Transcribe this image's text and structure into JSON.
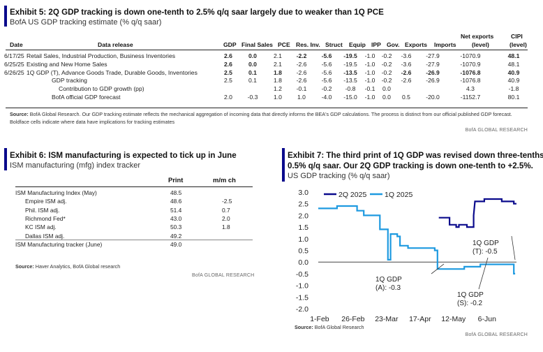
{
  "exhibit5": {
    "title": "Exhibit 5: 2Q GDP tracking is down one-tenth to 2.5% q/q saar largely due to weaker than 1Q PCE",
    "subtitle": "BofA US GDP tracking estimate (% q/q saar)",
    "headers": {
      "date": "Date",
      "release": "Data release",
      "gdp": "GDP",
      "final_sales": "Final Sales",
      "pce": "PCE",
      "res_inv": "Res. Inv.",
      "struct": "Struct",
      "equip": "Equip",
      "ipp": "IPP",
      "gov": "Gov.",
      "exports": "Exports",
      "imports": "Imports",
      "net_exports": "Net exports",
      "net_exports_unit": "(level)",
      "cipi": "CIPI",
      "cipi_unit": "(level)"
    },
    "rows": [
      {
        "date": "6/17/25",
        "release": "Retail Sales, Industrial Production, Business Inventories",
        "gdp": "2.6",
        "final_sales": "0.0",
        "pce": "2.1",
        "res_inv": "-2.2",
        "struct": "-5.6",
        "equip": "-19.5",
        "ipp": "-1.0",
        "gov": "-0.2",
        "exports": "-3.6",
        "imports": "-27.9",
        "net_exports": "-1070.9",
        "cipi": "48.1"
      },
      {
        "date": "6/25/25",
        "release": "Existing and New Home Sales",
        "gdp": "2.6",
        "final_sales": "0.0",
        "pce": "2.1",
        "res_inv": "-2.6",
        "struct": "-5.6",
        "equip": "-19.5",
        "ipp": "-1.0",
        "gov": "-0.2",
        "exports": "-3.6",
        "imports": "-27.9",
        "net_exports": "-1070.9",
        "cipi": "48.1"
      },
      {
        "date": "6/26/25",
        "release": "1Q GDP (T), Advance Goods Trade, Durable Goods, Inventories",
        "gdp": "2.5",
        "final_sales": "0.1",
        "pce": "1.8",
        "res_inv": "-2.6",
        "struct": "-5.6",
        "equip": "-13.5",
        "ipp": "-1.0",
        "gov": "-0.2",
        "exports": "-2.6",
        "imports": "-26.9",
        "net_exports": "-1076.8",
        "cipi": "40.9"
      },
      {
        "date": "",
        "release": "GDP tracking",
        "gdp": "2.5",
        "final_sales": "0.1",
        "pce": "1.8",
        "res_inv": "-2.6",
        "struct": "-5.6",
        "equip": "-13.5",
        "ipp": "-1.0",
        "gov": "-0.2",
        "exports": "-2.6",
        "imports": "-26.9",
        "net_exports": "-1076.8",
        "cipi": "40.9"
      },
      {
        "date": "",
        "release": "Contribution to GDP growth (pp)",
        "gdp": "",
        "final_sales": "",
        "pce": "1.2",
        "res_inv": "-0.1",
        "struct": "-0.2",
        "equip": "-0.8",
        "ipp": "-0.1",
        "gov": "0.0",
        "exports": "",
        "imports": "",
        "net_exports": "4.3",
        "cipi": "-1.8"
      },
      {
        "date": "",
        "release": "BofA official GDP forecast",
        "gdp": "2.0",
        "final_sales": "-0.3",
        "pce": "1.0",
        "res_inv": "1.0",
        "struct": "-4.0",
        "equip": "-15.0",
        "ipp": "-1.0",
        "gov": "0.0",
        "exports": "0.5",
        "imports": "-20.0",
        "net_exports": "-1152.7",
        "cipi": "80.1"
      }
    ],
    "source_label": "Source:",
    "source": " BofA Global Research. Our GDP tracking estimate reflects the mechanical aggregation of incoming data that directly informs the BEA's GDP calculations. The process is distinct from our official published GDP forecast. Boldface cells indicate where data have implications for tracking estimates",
    "brand": "BofA GLOBAL RESEARCH"
  },
  "exhibit6": {
    "title": "Exhibit 6: ISM manufacturing is expected to tick up in June",
    "subtitle": "ISM manufacturing (mfg) index tracker",
    "col_print": "Print",
    "col_mm": "m/m ch",
    "rows": [
      {
        "label": "ISM Manufacturing Index (May)",
        "print": "48.5",
        "mm": "",
        "indent": false
      },
      {
        "label": "Empire ISM adj.",
        "print": "48.6",
        "mm": "-2.5",
        "indent": true
      },
      {
        "label": "Phil. ISM adj.",
        "print": "51.4",
        "mm": "0.7",
        "indent": true
      },
      {
        "label": "Richmond Fed*",
        "print": "43.0",
        "mm": "2.0",
        "indent": true
      },
      {
        "label": "KC ISM adj.",
        "print": "50.3",
        "mm": "1.8",
        "indent": true
      },
      {
        "label": "Dallas ISM adj.",
        "print": "49.2",
        "mm": "",
        "indent": true
      },
      {
        "label": "ISM Manufacturing tracker (June)",
        "print": "49.0",
        "mm": "",
        "indent": false
      }
    ],
    "source_label": "Source:",
    "source": " Haver Analytics, BofA Global research",
    "brand": "BofA GLOBAL RESEARCH"
  },
  "exhibit7": {
    "title": "Exhibit 7: The third print of 1Q GDP was revised down three-tenths to -0.5% q/q saar. Our 2Q GDP tracking is down one-tenth to +2.5%.",
    "title_line1": "Exhibit 7: The third print of 1Q GDP was revised down three-tenths to -",
    "title_line2": "0.5% q/q saar. Our 2Q GDP tracking is down one-tenth to +2.5%.",
    "subtitle": "US GDP tracking (% q/q saar)",
    "source_label": "Source:",
    "source": " BofA Global Research",
    "brand": "BofA GLOBAL RESEARCH",
    "annotations": [
      {
        "line1": "1Q GDP",
        "line2": "(A): -0.3"
      },
      {
        "line1": "1Q GDP",
        "line2": "(S): -0.2"
      },
      {
        "line1": "1Q GDP",
        "line2": "(T): -0.5"
      }
    ]
  },
  "chart_data": {
    "type": "line",
    "title": "US GDP tracking (% q/q saar)",
    "xlabel": "",
    "ylabel": "",
    "ylim": [
      -2.0,
      3.0
    ],
    "yticks": [
      "3.0",
      "2.5",
      "2.0",
      "1.5",
      "1.0",
      "0.5",
      "0.0",
      "-0.5",
      "-1.0",
      "-1.5",
      "-2.0"
    ],
    "xticks": [
      "1-Feb",
      "26-Feb",
      "23-Mar",
      "17-Apr",
      "12-May",
      "6-Jun"
    ],
    "legend_position": "top",
    "series": [
      {
        "name": "2Q 2025",
        "color": "#0a0a8c",
        "points": [
          [
            "2025-05-01",
            1.9
          ],
          [
            "2025-05-09",
            1.9
          ],
          [
            "2025-05-09",
            1.6
          ],
          [
            "2025-05-14",
            1.6
          ],
          [
            "2025-05-14",
            1.5
          ],
          [
            "2025-05-16",
            1.5
          ],
          [
            "2025-05-16",
            1.6
          ],
          [
            "2025-05-22",
            1.6
          ],
          [
            "2025-05-22",
            1.5
          ],
          [
            "2025-05-27",
            1.5
          ],
          [
            "2025-05-27",
            2.0
          ],
          [
            "2025-05-28",
            2.6
          ],
          [
            "2025-06-04",
            2.6
          ],
          [
            "2025-06-04",
            2.7
          ],
          [
            "2025-06-17",
            2.7
          ],
          [
            "2025-06-17",
            2.6
          ],
          [
            "2025-06-26",
            2.6
          ],
          [
            "2025-06-26",
            2.5
          ],
          [
            "2025-06-28",
            2.5
          ]
        ]
      },
      {
        "name": "1Q 2025",
        "color": "#1e9ae0",
        "points": [
          [
            "2025-01-31",
            2.3
          ],
          [
            "2025-02-14",
            2.3
          ],
          [
            "2025-02-14",
            2.4
          ],
          [
            "2025-03-01",
            2.4
          ],
          [
            "2025-03-01",
            2.2
          ],
          [
            "2025-03-06",
            2.2
          ],
          [
            "2025-03-06",
            2.0
          ],
          [
            "2025-03-18",
            2.0
          ],
          [
            "2025-03-18",
            1.4
          ],
          [
            "2025-03-24",
            1.4
          ],
          [
            "2025-03-24",
            0.1
          ],
          [
            "2025-03-26",
            0.1
          ],
          [
            "2025-03-26",
            1.2
          ],
          [
            "2025-03-31",
            1.2
          ],
          [
            "2025-03-31",
            1.1
          ],
          [
            "2025-04-02",
            1.1
          ],
          [
            "2025-04-02",
            0.7
          ],
          [
            "2025-04-08",
            0.7
          ],
          [
            "2025-04-08",
            0.6
          ],
          [
            "2025-04-28",
            0.6
          ],
          [
            "2025-04-28",
            0.5
          ],
          [
            "2025-04-30",
            0.5
          ],
          [
            "2025-04-30",
            -0.3
          ],
          [
            "2025-05-20",
            -0.3
          ],
          [
            "2025-05-20",
            -0.2
          ],
          [
            "2025-06-01",
            -0.2
          ],
          [
            "2025-06-01",
            -0.1
          ],
          [
            "2025-06-26",
            -0.1
          ],
          [
            "2025-06-26",
            -0.5
          ],
          [
            "2025-06-27",
            -0.5
          ]
        ]
      }
    ],
    "grid": false
  }
}
